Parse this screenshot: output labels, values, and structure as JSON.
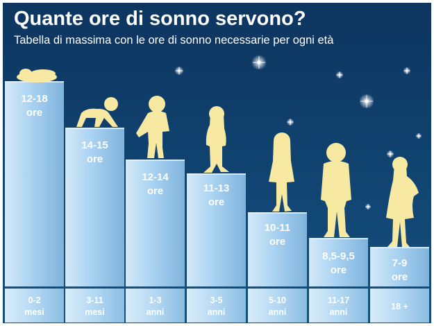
{
  "chart_data": {
    "type": "bar",
    "title": "Quante ore di sonno servono?",
    "subtitle": "Tabella di massima con le ore di sonno necessarie per ogni età",
    "categories": [
      [
        "0-2",
        "mesi"
      ],
      [
        "3-11",
        "mesi"
      ],
      [
        "1-3",
        "anni"
      ],
      [
        "3-5",
        "anni"
      ],
      [
        "5-10",
        "anni"
      ],
      [
        "11-17",
        "anni"
      ],
      [
        "18 +"
      ]
    ],
    "value_labels": [
      [
        "12-18",
        "ore"
      ],
      [
        "14-15",
        "ore"
      ],
      [
        "12-14",
        "ore"
      ],
      [
        "11-13",
        "ore"
      ],
      [
        "10-11",
        "ore"
      ],
      [
        "8,5-9,5",
        "ore"
      ],
      [
        "7-9",
        "ore"
      ]
    ],
    "silhouettes": [
      "sleeping-baby",
      "crawling-baby",
      "toddler",
      "small-child",
      "child",
      "teenager",
      "adult-woman"
    ],
    "colors": {
      "background_top": "#0d3560",
      "background_bottom": "#124a7e",
      "bar_light": "#cfe6f8",
      "bar_mid": "#9fcbed",
      "bar_dark": "#86b9e0",
      "silhouette": "#f7e8a2",
      "text": "#ffffff"
    }
  }
}
